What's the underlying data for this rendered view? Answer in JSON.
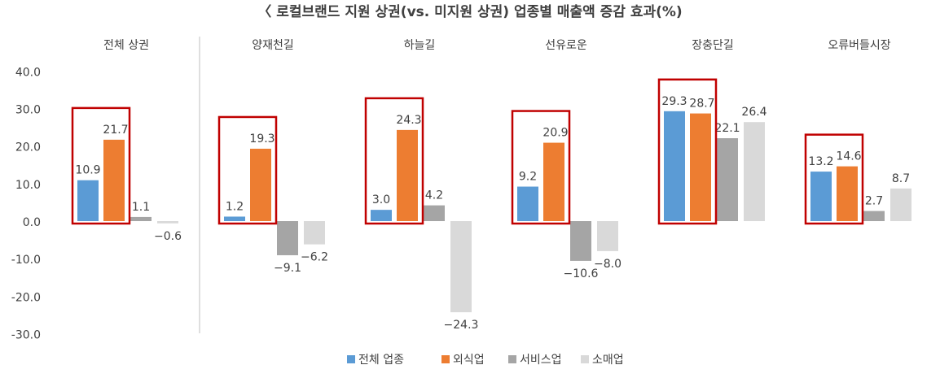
{
  "chart_data": {
    "type": "bar",
    "title": "〈 로컬브랜드 지원 상권(vs. 미지원 상권) 업종별 매출액 증감 효과(%)",
    "categories": [
      "전체 상권",
      "양재천길",
      "하늘길",
      "선유로운",
      "장충단길",
      "오류버들시장"
    ],
    "series": [
      {
        "name": "전체 업종",
        "color": "#5B9BD5",
        "values": [
          10.9,
          1.2,
          3.0,
          9.2,
          29.3,
          13.2
        ]
      },
      {
        "name": "외식업",
        "color": "#ED7D31",
        "values": [
          21.7,
          19.3,
          24.3,
          20.9,
          28.7,
          14.6
        ]
      },
      {
        "name": "서비스업",
        "color": "#A5A5A5",
        "values": [
          1.1,
          -9.1,
          4.2,
          -10.6,
          22.1,
          2.7
        ]
      },
      {
        "name": "소매업",
        "color": "#D9D9D9",
        "values": [
          -0.6,
          -6.2,
          -24.3,
          -8.0,
          26.4,
          8.7
        ]
      }
    ],
    "ylim": [
      -30,
      40
    ],
    "yticks": [
      "40.0",
      "30.0",
      "20.0",
      "10.0",
      "0.0",
      "-10.0",
      "-20.0",
      "-30.0"
    ],
    "grid": false,
    "legend": "bottom",
    "highlight_color": "#C00000",
    "highlight": "red box around 전체 업종 and 외식업 bars in each category"
  }
}
